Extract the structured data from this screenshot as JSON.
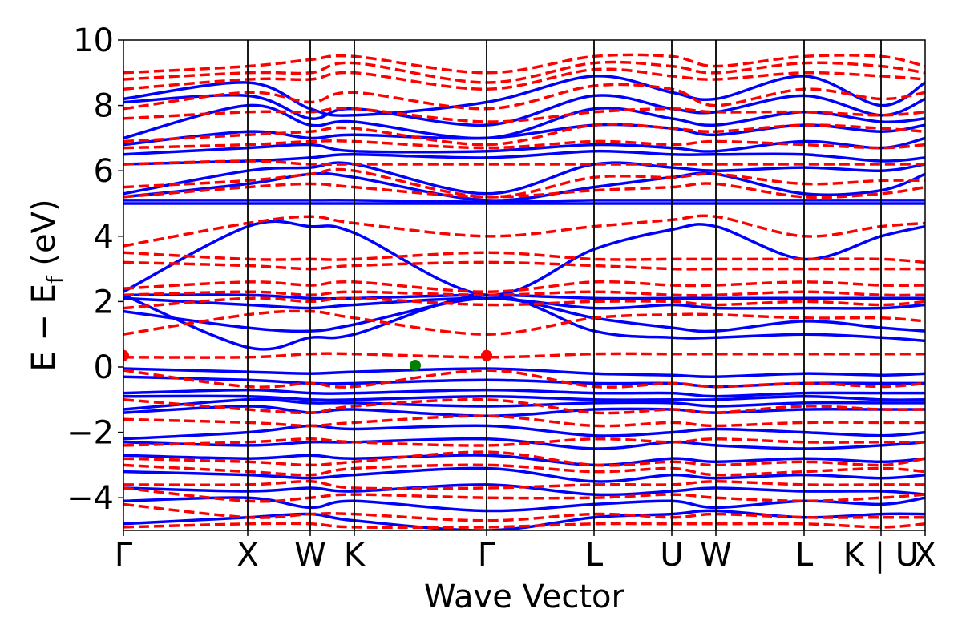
{
  "chart_data": {
    "type": "line",
    "xlabel": "Wave Vector",
    "ylabel": "E − E_f (eV)",
    "ylabel_main": "E − E",
    "ylabel_sub": "f",
    "ylabel_units": " (eV)",
    "ylim": [
      -5,
      10
    ],
    "yticks": [
      {
        "value": -4,
        "label": "−4"
      },
      {
        "value": -2,
        "label": "−2"
      },
      {
        "value": 0,
        "label": "0"
      },
      {
        "value": 2,
        "label": "2"
      },
      {
        "value": 4,
        "label": "4"
      },
      {
        "value": 6,
        "label": "6"
      },
      {
        "value": 8,
        "label": "8"
      },
      {
        "value": 10,
        "label": "10"
      }
    ],
    "kpath": [
      {
        "label": "Γ",
        "pos": 0.0
      },
      {
        "label": "X",
        "pos": 0.155
      },
      {
        "label": "W",
        "pos": 0.233
      },
      {
        "label": "K",
        "pos": 0.288
      },
      {
        "label": "Γ",
        "pos": 0.453
      },
      {
        "label": "L",
        "pos": 0.587
      },
      {
        "label": "U",
        "pos": 0.684
      },
      {
        "label": "W",
        "pos": 0.739
      },
      {
        "label": "L",
        "pos": 0.849
      },
      {
        "label": "K | U",
        "pos": 0.945
      },
      {
        "label": "X",
        "pos": 1.0
      }
    ],
    "series": [
      {
        "style": "solid",
        "color": "#0000ff",
        "bands": [
          [
            8.2,
            8.7,
            7.9,
            7.7,
            8.1,
            8.9,
            8.4,
            8.2,
            8.9,
            8.0,
            8.7
          ],
          [
            8.1,
            8.3,
            7.6,
            7.9,
            7.4,
            8.3,
            7.9,
            7.8,
            8.3,
            7.7,
            8.2
          ],
          [
            7.0,
            8.0,
            7.4,
            7.5,
            7.0,
            7.9,
            7.6,
            7.4,
            7.8,
            7.5,
            7.6
          ],
          [
            6.8,
            7.2,
            7.0,
            7.1,
            7.0,
            7.4,
            7.3,
            7.1,
            7.4,
            7.2,
            7.4
          ],
          [
            6.5,
            6.7,
            6.8,
            6.6,
            6.6,
            6.8,
            6.7,
            6.6,
            6.9,
            6.7,
            7.0
          ],
          [
            6.2,
            6.3,
            6.4,
            6.5,
            6.4,
            6.6,
            6.5,
            6.5,
            6.5,
            6.3,
            6.4
          ],
          [
            5.3,
            6.0,
            6.1,
            6.2,
            5.3,
            6.2,
            6.1,
            6.0,
            6.1,
            6.0,
            6.2
          ],
          [
            5.2,
            5.6,
            5.9,
            5.8,
            5.1,
            5.5,
            5.8,
            5.9,
            5.3,
            5.4,
            5.9
          ],
          [
            5.1,
            5.1,
            5.1,
            5.1,
            5.05,
            5.1,
            5.1,
            5.1,
            5.1,
            5.1,
            5.1
          ],
          [
            5.0,
            5.0,
            5.0,
            5.0,
            5.0,
            5.0,
            5.0,
            5.0,
            5.0,
            5.0,
            5.0
          ],
          [
            2.3,
            4.3,
            4.3,
            4.1,
            2.2,
            3.6,
            4.2,
            4.3,
            3.3,
            4.0,
            4.3
          ],
          [
            2.2,
            2.2,
            2.1,
            2.1,
            2.2,
            2.1,
            2.1,
            2.1,
            2.1,
            2.1,
            2.1
          ],
          [
            2.1,
            1.9,
            1.8,
            1.9,
            2.1,
            1.8,
            1.9,
            1.8,
            1.8,
            1.8,
            1.9
          ],
          [
            1.7,
            1.2,
            1.1,
            1.3,
            2.1,
            1.5,
            1.2,
            1.1,
            1.4,
            1.2,
            1.1
          ],
          [
            2.2,
            0.6,
            0.9,
            1.0,
            2.2,
            1.1,
            0.9,
            0.9,
            1.0,
            0.9,
            0.8
          ],
          [
            -0.05,
            -0.15,
            -0.2,
            -0.15,
            -0.05,
            -0.2,
            -0.25,
            -0.3,
            -0.2,
            -0.25,
            -0.2
          ],
          [
            -0.3,
            -0.4,
            -0.5,
            -0.5,
            -0.4,
            -0.5,
            -0.5,
            -0.6,
            -0.5,
            -0.5,
            -0.5
          ],
          [
            -0.8,
            -0.7,
            -0.8,
            -0.8,
            -0.7,
            -0.8,
            -0.8,
            -0.9,
            -0.8,
            -0.8,
            -0.8
          ],
          [
            -0.9,
            -0.9,
            -1.0,
            -1.0,
            -0.9,
            -1.0,
            -1.0,
            -1.0,
            -0.9,
            -1.0,
            -1.0
          ],
          [
            -1.3,
            -1.0,
            -1.1,
            -1.1,
            -1.2,
            -1.1,
            -1.1,
            -1.2,
            -1.1,
            -1.1,
            -1.1
          ],
          [
            -1.4,
            -1.2,
            -1.4,
            -1.3,
            -1.5,
            -1.3,
            -1.3,
            -1.4,
            -1.3,
            -1.3,
            -1.3
          ],
          [
            -2.2,
            -2.0,
            -1.8,
            -1.9,
            -1.8,
            -2.1,
            -2.0,
            -1.9,
            -2.0,
            -2.1,
            -2.0
          ],
          [
            -2.3,
            -2.4,
            -2.3,
            -2.3,
            -2.2,
            -2.5,
            -2.3,
            -2.4,
            -2.5,
            -2.4,
            -2.3
          ],
          [
            -2.7,
            -2.8,
            -2.7,
            -2.8,
            -2.7,
            -3.0,
            -2.8,
            -2.9,
            -2.8,
            -2.9,
            -2.8
          ],
          [
            -3.2,
            -3.3,
            -3.4,
            -3.3,
            -3.1,
            -3.5,
            -3.3,
            -3.4,
            -3.3,
            -3.4,
            -3.3
          ],
          [
            -3.7,
            -3.8,
            -3.7,
            -3.8,
            -3.6,
            -3.9,
            -3.8,
            -3.7,
            -3.8,
            -3.8,
            -3.9
          ],
          [
            -4.1,
            -4.0,
            -4.3,
            -4.1,
            -4.4,
            -4.2,
            -4.1,
            -4.3,
            -4.1,
            -4.2,
            -4.0
          ],
          [
            -4.8,
            -4.6,
            -4.5,
            -4.7,
            -5.0,
            -4.6,
            -4.5,
            -4.4,
            -4.6,
            -4.5,
            -4.5
          ]
        ]
      },
      {
        "style": "dashed",
        "color": "#ff0000",
        "bands": [
          [
            9.0,
            9.2,
            9.4,
            9.5,
            9.0,
            9.5,
            9.5,
            9.2,
            9.5,
            9.5,
            9.2
          ],
          [
            8.8,
            9.0,
            9.0,
            9.3,
            8.7,
            9.3,
            9.2,
            9.0,
            9.3,
            9.2,
            9.0
          ],
          [
            8.5,
            8.8,
            8.8,
            9.0,
            8.5,
            9.1,
            8.9,
            8.8,
            9.0,
            8.9,
            8.8
          ],
          [
            7.9,
            8.4,
            8.1,
            8.4,
            7.9,
            8.6,
            8.5,
            8.0,
            8.5,
            8.2,
            8.4
          ],
          [
            7.6,
            7.8,
            7.8,
            7.9,
            7.5,
            7.8,
            7.9,
            7.8,
            7.8,
            7.7,
            7.8
          ],
          [
            6.9,
            7.1,
            7.2,
            7.3,
            6.8,
            7.4,
            7.3,
            7.2,
            7.4,
            7.3,
            7.2
          ],
          [
            6.7,
            6.8,
            6.9,
            6.9,
            6.7,
            6.9,
            6.8,
            6.9,
            6.8,
            6.7,
            6.8
          ],
          [
            6.2,
            6.3,
            6.2,
            6.2,
            6.2,
            6.2,
            6.2,
            6.2,
            6.2,
            6.2,
            6.2
          ],
          [
            5.5,
            5.7,
            5.9,
            6.0,
            5.2,
            5.8,
            5.8,
            5.9,
            5.6,
            5.7,
            5.7
          ],
          [
            5.2,
            5.5,
            5.6,
            5.5,
            5.2,
            5.4,
            5.5,
            5.6,
            5.2,
            5.3,
            5.5
          ],
          [
            3.7,
            4.4,
            4.6,
            4.4,
            4.0,
            4.3,
            4.5,
            4.6,
            4.0,
            4.3,
            4.4
          ],
          [
            3.5,
            3.3,
            3.3,
            3.3,
            3.5,
            3.3,
            3.3,
            3.3,
            3.3,
            3.3,
            3.2
          ],
          [
            3.2,
            3.1,
            3.0,
            3.1,
            3.2,
            3.1,
            3.0,
            3.0,
            3.0,
            3.0,
            3.0
          ],
          [
            2.4,
            2.6,
            2.5,
            2.6,
            2.3,
            2.6,
            2.5,
            2.5,
            2.6,
            2.5,
            2.5
          ],
          [
            2.2,
            2.3,
            2.2,
            2.3,
            2.2,
            2.3,
            2.2,
            2.2,
            2.3,
            2.2,
            2.2
          ],
          [
            1.8,
            2.1,
            2.0,
            2.1,
            1.9,
            2.0,
            2.0,
            1.9,
            2.0,
            1.9,
            2.0
          ],
          [
            1.0,
            1.6,
            1.7,
            1.5,
            1.0,
            1.5,
            1.6,
            1.6,
            1.5,
            1.5,
            1.4
          ],
          [
            0.3,
            0.3,
            0.4,
            0.4,
            0.3,
            0.4,
            0.4,
            0.4,
            0.4,
            0.4,
            0.4
          ],
          [
            -0.1,
            -0.6,
            -0.5,
            -0.6,
            -0.1,
            -0.6,
            -0.5,
            -0.6,
            -0.5,
            -0.6,
            -0.5
          ],
          [
            -1.0,
            -1.3,
            -1.4,
            -1.2,
            -1.0,
            -1.4,
            -1.3,
            -1.4,
            -1.2,
            -1.3,
            -1.3
          ],
          [
            -1.6,
            -1.7,
            -1.8,
            -1.7,
            -1.5,
            -1.8,
            -1.7,
            -1.8,
            -1.7,
            -1.7,
            -1.7
          ],
          [
            -2.4,
            -2.3,
            -2.2,
            -2.3,
            -2.4,
            -2.2,
            -2.3,
            -2.2,
            -2.3,
            -2.3,
            -2.3
          ],
          [
            -2.8,
            -2.9,
            -3.0,
            -2.9,
            -2.6,
            -3.0,
            -2.9,
            -3.0,
            -2.9,
            -3.0,
            -2.8
          ],
          [
            -3.0,
            -3.2,
            -3.3,
            -3.1,
            -3.0,
            -3.2,
            -3.1,
            -3.3,
            -3.2,
            -3.1,
            -3.2
          ],
          [
            -3.6,
            -3.6,
            -3.5,
            -3.7,
            -3.7,
            -3.6,
            -3.6,
            -3.5,
            -3.6,
            -3.6,
            -3.6
          ],
          [
            -3.7,
            -4.1,
            -4.0,
            -3.9,
            -4.0,
            -4.0,
            -3.9,
            -4.0,
            -4.1,
            -4.0,
            -3.9
          ],
          [
            -4.2,
            -4.6,
            -4.5,
            -4.5,
            -4.7,
            -4.5,
            -4.6,
            -4.5,
            -4.6,
            -4.6,
            -4.6
          ],
          [
            -4.9,
            -4.8,
            -4.8,
            -4.9,
            -4.9,
            -4.8,
            -4.8,
            -4.8,
            -4.8,
            -4.9,
            -4.8
          ]
        ]
      }
    ],
    "points": [
      {
        "x_pos": 0.0,
        "y": 0.35,
        "color": "#ff0000"
      },
      {
        "x_pos": 0.453,
        "y": 0.35,
        "color": "#ff0000"
      },
      {
        "x_pos": 0.364,
        "y": 0.05,
        "color": "#008000"
      }
    ],
    "grid": false,
    "legend": "none"
  }
}
